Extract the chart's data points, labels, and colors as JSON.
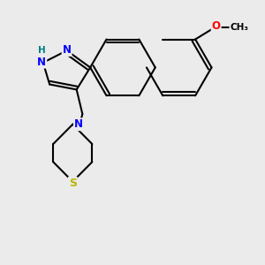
{
  "background_color": "#ebebeb",
  "bond_color": "#000000",
  "bond_width": 1.5,
  "atom_colors": {
    "N": "#0000ff",
    "S": "#b8b800",
    "O": "#ff0000",
    "C": "#000000",
    "H": "#008080"
  },
  "figsize": [
    3.0,
    3.0
  ],
  "dpi": 100
}
